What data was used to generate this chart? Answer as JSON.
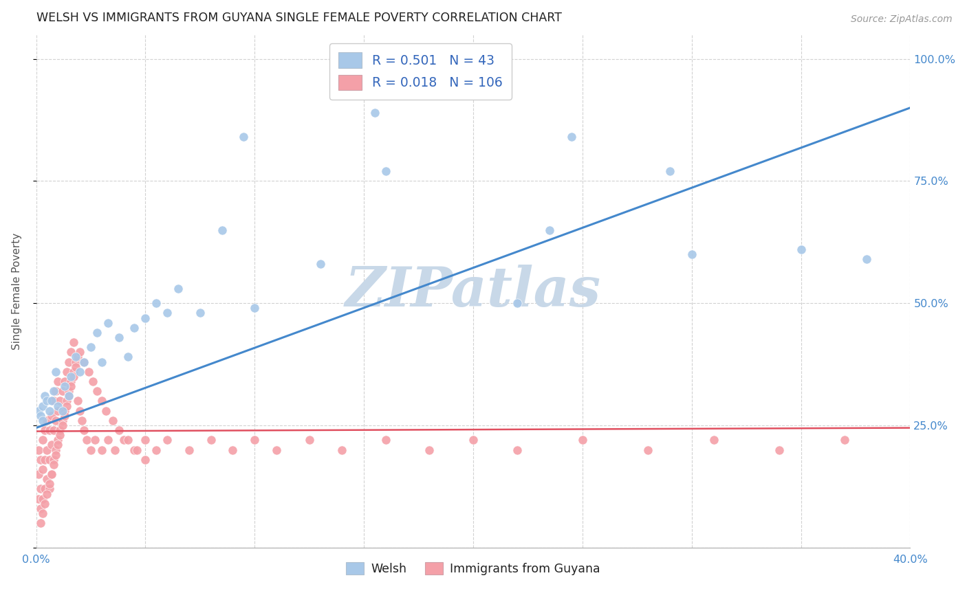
{
  "title": "WELSH VS IMMIGRANTS FROM GUYANA SINGLE FEMALE POVERTY CORRELATION CHART",
  "source": "Source: ZipAtlas.com",
  "ylabel": "Single Female Poverty",
  "xlim": [
    0.0,
    0.4
  ],
  "ylim": [
    0.0,
    1.05
  ],
  "welsh_R": 0.501,
  "welsh_N": 43,
  "guyana_R": 0.018,
  "guyana_N": 106,
  "welsh_color": "#a8c8e8",
  "guyana_color": "#f4a0a8",
  "line_welsh_color": "#4488cc",
  "line_guyana_color": "#e05060",
  "watermark": "ZIPatlas",
  "watermark_color": "#c8d8e8",
  "tick_label_color": "#4488cc",
  "legend_text_color": "#3366bb",
  "background_color": "#ffffff",
  "grid_color": "#cccccc",
  "welsh_x": [
    0.001,
    0.002,
    0.003,
    0.003,
    0.004,
    0.005,
    0.006,
    0.007,
    0.008,
    0.009,
    0.01,
    0.012,
    0.013,
    0.015,
    0.016,
    0.018,
    0.02,
    0.022,
    0.025,
    0.028,
    0.03,
    0.033,
    0.038,
    0.042,
    0.045,
    0.05,
    0.055,
    0.06,
    0.065,
    0.075,
    0.085,
    0.095,
    0.1,
    0.13,
    0.155,
    0.16,
    0.22,
    0.235,
    0.245,
    0.29,
    0.3,
    0.35,
    0.38
  ],
  "welsh_y": [
    0.28,
    0.27,
    0.29,
    0.26,
    0.31,
    0.3,
    0.28,
    0.3,
    0.32,
    0.36,
    0.29,
    0.28,
    0.33,
    0.31,
    0.35,
    0.39,
    0.36,
    0.38,
    0.41,
    0.44,
    0.38,
    0.46,
    0.43,
    0.39,
    0.45,
    0.47,
    0.5,
    0.48,
    0.53,
    0.48,
    0.65,
    0.84,
    0.49,
    0.58,
    0.89,
    0.77,
    0.5,
    0.65,
    0.84,
    0.77,
    0.6,
    0.61,
    0.59
  ],
  "guyana_x": [
    0.001,
    0.001,
    0.001,
    0.002,
    0.002,
    0.002,
    0.003,
    0.003,
    0.003,
    0.004,
    0.004,
    0.004,
    0.005,
    0.005,
    0.005,
    0.006,
    0.006,
    0.006,
    0.007,
    0.007,
    0.007,
    0.008,
    0.008,
    0.008,
    0.009,
    0.009,
    0.009,
    0.01,
    0.01,
    0.01,
    0.011,
    0.011,
    0.012,
    0.012,
    0.013,
    0.013,
    0.014,
    0.014,
    0.015,
    0.015,
    0.016,
    0.016,
    0.017,
    0.017,
    0.018,
    0.019,
    0.02,
    0.021,
    0.022,
    0.023,
    0.025,
    0.027,
    0.03,
    0.033,
    0.036,
    0.04,
    0.045,
    0.05,
    0.055,
    0.06,
    0.07,
    0.08,
    0.09,
    0.1,
    0.11,
    0.125,
    0.14,
    0.16,
    0.18,
    0.2,
    0.22,
    0.25,
    0.28,
    0.31,
    0.34,
    0.37,
    0.002,
    0.003,
    0.004,
    0.005,
    0.006,
    0.007,
    0.008,
    0.009,
    0.01,
    0.011,
    0.012,
    0.013,
    0.014,
    0.015,
    0.016,
    0.017,
    0.018,
    0.019,
    0.02,
    0.022,
    0.024,
    0.026,
    0.028,
    0.03,
    0.032,
    0.035,
    0.038,
    0.042,
    0.046,
    0.05
  ],
  "guyana_y": [
    0.1,
    0.15,
    0.2,
    0.08,
    0.12,
    0.18,
    0.1,
    0.16,
    0.22,
    0.12,
    0.18,
    0.24,
    0.14,
    0.2,
    0.26,
    0.12,
    0.18,
    0.24,
    0.15,
    0.21,
    0.27,
    0.18,
    0.24,
    0.3,
    0.2,
    0.26,
    0.32,
    0.22,
    0.28,
    0.34,
    0.24,
    0.3,
    0.26,
    0.32,
    0.28,
    0.34,
    0.3,
    0.36,
    0.32,
    0.38,
    0.34,
    0.4,
    0.36,
    0.42,
    0.38,
    0.3,
    0.28,
    0.26,
    0.24,
    0.22,
    0.2,
    0.22,
    0.2,
    0.22,
    0.2,
    0.22,
    0.2,
    0.22,
    0.2,
    0.22,
    0.2,
    0.22,
    0.2,
    0.22,
    0.2,
    0.22,
    0.2,
    0.22,
    0.2,
    0.22,
    0.2,
    0.22,
    0.2,
    0.22,
    0.2,
    0.22,
    0.05,
    0.07,
    0.09,
    0.11,
    0.13,
    0.15,
    0.17,
    0.19,
    0.21,
    0.23,
    0.25,
    0.27,
    0.29,
    0.31,
    0.33,
    0.35,
    0.37,
    0.39,
    0.4,
    0.38,
    0.36,
    0.34,
    0.32,
    0.3,
    0.28,
    0.26,
    0.24,
    0.22,
    0.2,
    0.18
  ],
  "welsh_line_x0": 0.0,
  "welsh_line_x1": 0.4,
  "welsh_line_y0": 0.245,
  "welsh_line_y1": 0.9,
  "guyana_line_x0": 0.0,
  "guyana_line_x1": 0.4,
  "guyana_line_y0": 0.238,
  "guyana_line_y1": 0.245
}
